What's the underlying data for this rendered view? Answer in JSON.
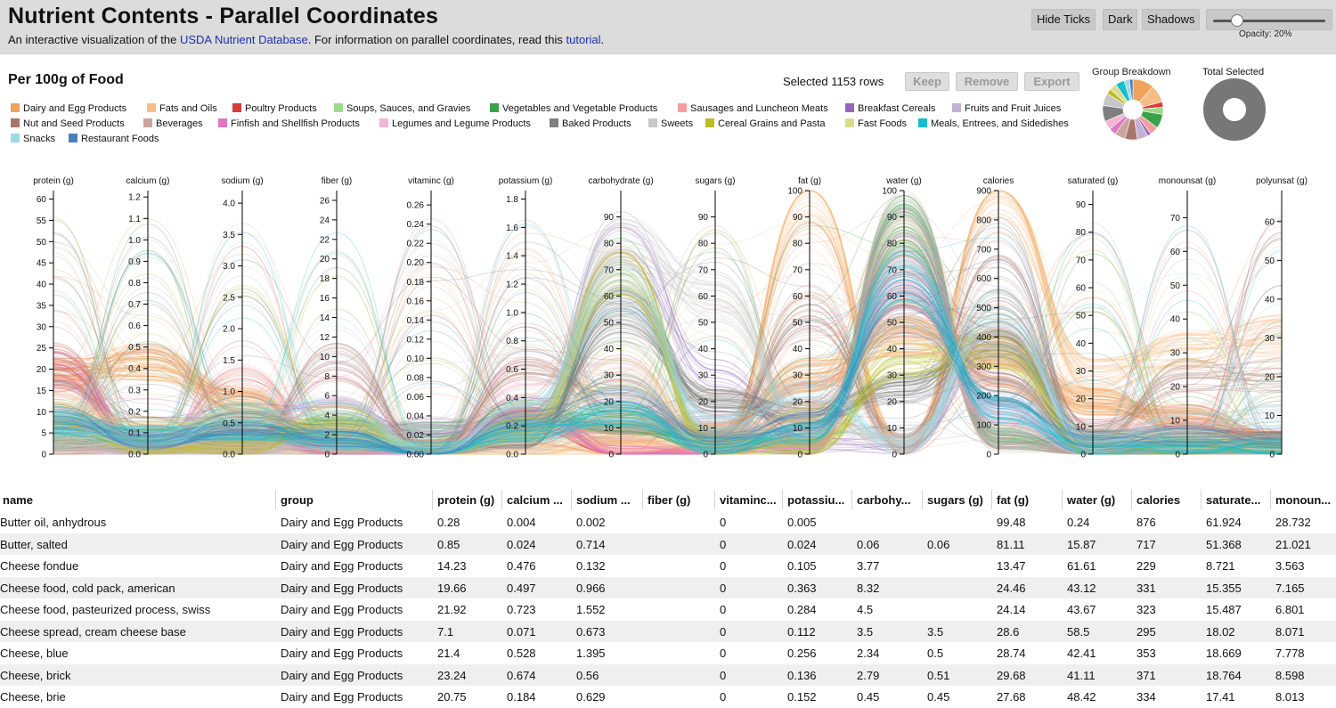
{
  "header": {
    "title": "Nutrient Contents - Parallel Coordinates",
    "subtitle_pre": "An interactive visualization of the ",
    "subtitle_link1": "USDA Nutrient Database",
    "subtitle_mid": ". For information on parallel coordinates, read this ",
    "subtitle_link2": "tutorial",
    "subtitle_post": ".",
    "buttons": {
      "hide_ticks": "Hide Ticks",
      "dark": "Dark",
      "shadows": "Shadows"
    },
    "opacity_label": "Opacity: 20%",
    "opacity_value": 0.2
  },
  "toolbar": {
    "per_food": "Per 100g of Food",
    "selected": "Selected 1153 rows",
    "keep": "Keep",
    "remove": "Remove",
    "export": "Export",
    "group_breakdown": "Group Breakdown",
    "total_selected": "Total Selected"
  },
  "legend": [
    {
      "label": "Dairy and Egg Products",
      "color": "#f0a35a"
    },
    {
      "label": "Fats and Oils",
      "color": "#f7bd86"
    },
    {
      "label": "Poultry Products",
      "color": "#d63c3c"
    },
    {
      "label": "Soups, Sauces, and Gravies",
      "color": "#9fd98a"
    },
    {
      "label": "Vegetables and Vegetable Products",
      "color": "#3aa34a"
    },
    {
      "label": "Sausages and Luncheon Meats",
      "color": "#f59d9d"
    },
    {
      "label": "Breakfast Cereals",
      "color": "#9467bd"
    },
    {
      "label": "Fruits and Fruit Juices",
      "color": "#c5b0d5"
    },
    {
      "label": "Nut and Seed Products",
      "color": "#a9756c"
    },
    {
      "label": "Beverages",
      "color": "#c9a59c"
    },
    {
      "label": "Finfish and Shellfish Products",
      "color": "#e078c2"
    },
    {
      "label": "Legumes and Legume Products",
      "color": "#f2b6d2"
    },
    {
      "label": "Baked Products",
      "color": "#7f7f7f"
    },
    {
      "label": "Sweets",
      "color": "#c7c7c7"
    },
    {
      "label": "Cereal Grains and Pasta",
      "color": "#bcbd22"
    },
    {
      "label": "Fast Foods",
      "color": "#dbdb8d"
    },
    {
      "label": "Meals, Entrees, and Sidedishes",
      "color": "#17becf"
    },
    {
      "label": "Snacks",
      "color": "#9edae5"
    },
    {
      "label": "Restaurant Foods",
      "color": "#4a7fbf"
    }
  ],
  "group_breakdown": [
    12,
    10,
    3,
    4,
    8,
    5,
    2,
    6,
    7,
    6,
    4,
    5,
    9,
    7,
    3,
    4,
    5,
    3,
    2
  ],
  "chart_data": {
    "type": "parallel_coordinates",
    "dimensions": [
      {
        "name": "protein (g)",
        "ticks": [
          0,
          5,
          10,
          15,
          20,
          25,
          30,
          35,
          40,
          45,
          50,
          55,
          60
        ],
        "domain": [
          0,
          62
        ]
      },
      {
        "name": "calcium (g)",
        "ticks": [
          "0.0",
          "0.1",
          "0.2",
          "0.3",
          "0.4",
          "0.5",
          "0.6",
          "0.7",
          "0.8",
          "0.9",
          "1.0",
          "1.1",
          "1.2"
        ],
        "domain": [
          0,
          1.23
        ]
      },
      {
        "name": "sodium (g)",
        "ticks": [
          "0.0",
          "0.5",
          "1.0",
          "1.5",
          "2.0",
          "2.5",
          "3.0",
          "3.5",
          "4.0"
        ],
        "domain": [
          0,
          4.2
        ]
      },
      {
        "name": "fiber (g)",
        "ticks": [
          0,
          2,
          4,
          6,
          8,
          10,
          12,
          14,
          16,
          18,
          20,
          22,
          24,
          26
        ],
        "domain": [
          0,
          27
        ]
      },
      {
        "name": "vitaminc (g)",
        "ticks": [
          "0.00",
          "0.02",
          "0.04",
          "0.06",
          "0.08",
          "0.10",
          "0.12",
          "0.14",
          "0.16",
          "0.18",
          "0.20",
          "0.22",
          "0.24",
          "0.26"
        ],
        "domain": [
          0,
          0.275
        ]
      },
      {
        "name": "potassium (g)",
        "ticks": [
          "0.0",
          "0.2",
          "0.4",
          "0.6",
          "0.8",
          "1.0",
          "1.2",
          "1.4",
          "1.6",
          "1.8"
        ],
        "domain": [
          0,
          1.86
        ]
      },
      {
        "name": "carbohydrate (g)",
        "ticks": [
          0,
          10,
          20,
          30,
          40,
          50,
          60,
          70,
          80,
          90
        ],
        "domain": [
          0,
          100
        ]
      },
      {
        "name": "sugars (g)",
        "ticks": [
          0,
          10,
          20,
          30,
          40,
          50,
          60,
          70,
          80,
          90
        ],
        "domain": [
          0,
          100
        ]
      },
      {
        "name": "fat (g)",
        "ticks": [
          0,
          10,
          20,
          30,
          40,
          50,
          60,
          70,
          80,
          90,
          100
        ],
        "domain": [
          0,
          100
        ]
      },
      {
        "name": "water (g)",
        "ticks": [
          0,
          10,
          20,
          30,
          40,
          50,
          60,
          70,
          80,
          90,
          100
        ],
        "domain": [
          0,
          100
        ]
      },
      {
        "name": "calories",
        "ticks": [
          0,
          100,
          200,
          300,
          400,
          500,
          600,
          700,
          800,
          900
        ],
        "domain": [
          0,
          900
        ]
      },
      {
        "name": "saturated (g)",
        "ticks": [
          0,
          10,
          20,
          30,
          40,
          50,
          60,
          70,
          80,
          90
        ],
        "domain": [
          0,
          95
        ]
      },
      {
        "name": "monounsat (g)",
        "ticks": [
          0,
          10,
          20,
          30,
          40,
          50,
          60,
          70
        ],
        "domain": [
          0,
          78
        ]
      },
      {
        "name": "polyunsat (g)",
        "ticks": [
          0,
          10,
          20,
          30,
          40,
          50,
          60
        ],
        "domain": [
          0,
          68
        ]
      }
    ]
  },
  "table": {
    "columns": [
      "name",
      "group",
      "protein (g)",
      "calcium ...",
      "sodium ...",
      "fiber (g)",
      "vitaminc...",
      "potassiu...",
      "carbohy...",
      "sugars (g)",
      "fat (g)",
      "water (g)",
      "calories",
      "saturate...",
      "monoun..."
    ],
    "rows": [
      [
        "Butter oil, anhydrous",
        "Dairy and Egg Products",
        "0.28",
        "0.004",
        "0.002",
        "",
        "0",
        "0.005",
        "",
        "",
        "99.48",
        "0.24",
        "876",
        "61.924",
        "28.732"
      ],
      [
        "Butter, salted",
        "Dairy and Egg Products",
        "0.85",
        "0.024",
        "0.714",
        "",
        "0",
        "0.024",
        "0.06",
        "0.06",
        "81.11",
        "15.87",
        "717",
        "51.368",
        "21.021"
      ],
      [
        "Cheese fondue",
        "Dairy and Egg Products",
        "14.23",
        "0.476",
        "0.132",
        "",
        "0",
        "0.105",
        "3.77",
        "",
        "13.47",
        "61.61",
        "229",
        "8.721",
        "3.563"
      ],
      [
        "Cheese food, cold pack, american",
        "Dairy and Egg Products",
        "19.66",
        "0.497",
        "0.966",
        "",
        "0",
        "0.363",
        "8.32",
        "",
        "24.46",
        "43.12",
        "331",
        "15.355",
        "7.165"
      ],
      [
        "Cheese food, pasteurized process, swiss",
        "Dairy and Egg Products",
        "21.92",
        "0.723",
        "1.552",
        "",
        "0",
        "0.284",
        "4.5",
        "",
        "24.14",
        "43.67",
        "323",
        "15.487",
        "6.801"
      ],
      [
        "Cheese spread, cream cheese base",
        "Dairy and Egg Products",
        "7.1",
        "0.071",
        "0.673",
        "",
        "0",
        "0.112",
        "3.5",
        "3.5",
        "28.6",
        "58.5",
        "295",
        "18.02",
        "8.071"
      ],
      [
        "Cheese, blue",
        "Dairy and Egg Products",
        "21.4",
        "0.528",
        "1.395",
        "",
        "0",
        "0.256",
        "2.34",
        "0.5",
        "28.74",
        "42.41",
        "353",
        "18.669",
        "7.778"
      ],
      [
        "Cheese, brick",
        "Dairy and Egg Products",
        "23.24",
        "0.674",
        "0.56",
        "",
        "0",
        "0.136",
        "2.79",
        "0.51",
        "29.68",
        "41.11",
        "371",
        "18.764",
        "8.598"
      ],
      [
        "Cheese, brie",
        "Dairy and Egg Products",
        "20.75",
        "0.184",
        "0.629",
        "",
        "0",
        "0.152",
        "0.45",
        "0.45",
        "27.68",
        "48.42",
        "334",
        "17.41",
        "8.013"
      ]
    ]
  }
}
